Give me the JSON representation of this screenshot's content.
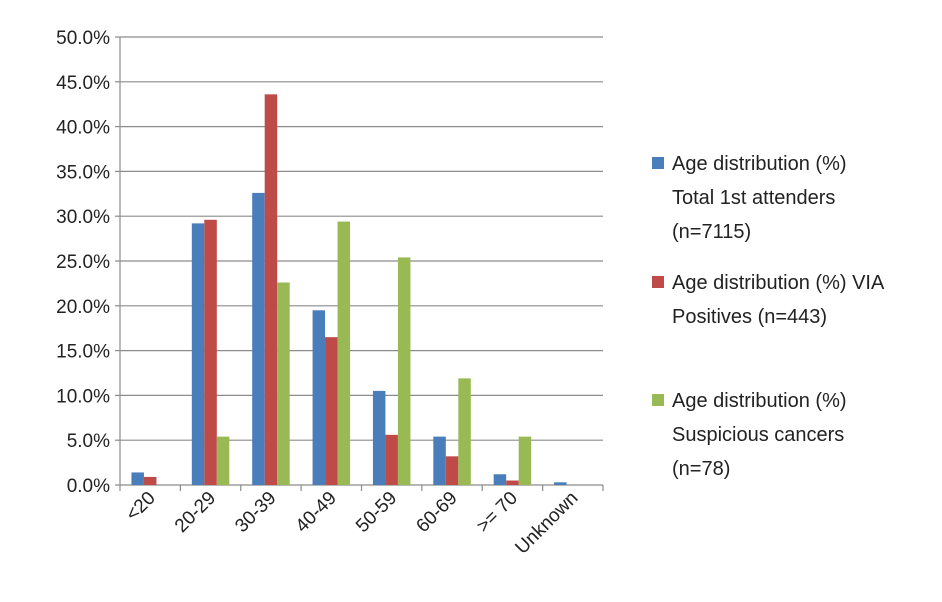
{
  "chart_data": {
    "type": "bar",
    "categories": [
      "<20",
      "20-29",
      "30-39",
      "40-49",
      "50-59",
      "60-69",
      ">= 70",
      "Unknown"
    ],
    "series": [
      {
        "name": "Age distribution (%) Total 1st attenders (n=7115)",
        "legend_lines": [
          "Age distribution (%)",
          "Total 1st attenders",
          "(n=7115)"
        ],
        "color": "#4a7ebb",
        "values": [
          1.4,
          29.2,
          32.6,
          19.5,
          10.5,
          5.4,
          1.2,
          0.3
        ]
      },
      {
        "name": "Age distribution (%) VIA Positives (n=443)",
        "legend_lines": [
          "Age distribution (%) VIA",
          "Positives (n=443)"
        ],
        "color": "#be4b48",
        "values": [
          0.9,
          29.6,
          43.6,
          16.5,
          5.6,
          3.2,
          0.5,
          0.0
        ]
      },
      {
        "name": "Age distribution (%) Suspicious cancers (n=78)",
        "legend_lines": [
          "Age distribution (%)",
          "Suspicious cancers",
          "(n=78)"
        ],
        "color": "#98b954",
        "values": [
          0.0,
          5.4,
          22.6,
          29.4,
          25.4,
          11.9,
          5.4,
          0.0
        ]
      }
    ],
    "ylim": [
      0,
      50
    ],
    "yticks": [
      "0.0%",
      "5.0%",
      "10.0%",
      "15.0%",
      "20.0%",
      "25.0%",
      "30.0%",
      "35.0%",
      "40.0%",
      "45.0%",
      "50.0%"
    ],
    "grid": true,
    "legend_position": "right",
    "title": "",
    "xlabel": "",
    "ylabel": ""
  }
}
